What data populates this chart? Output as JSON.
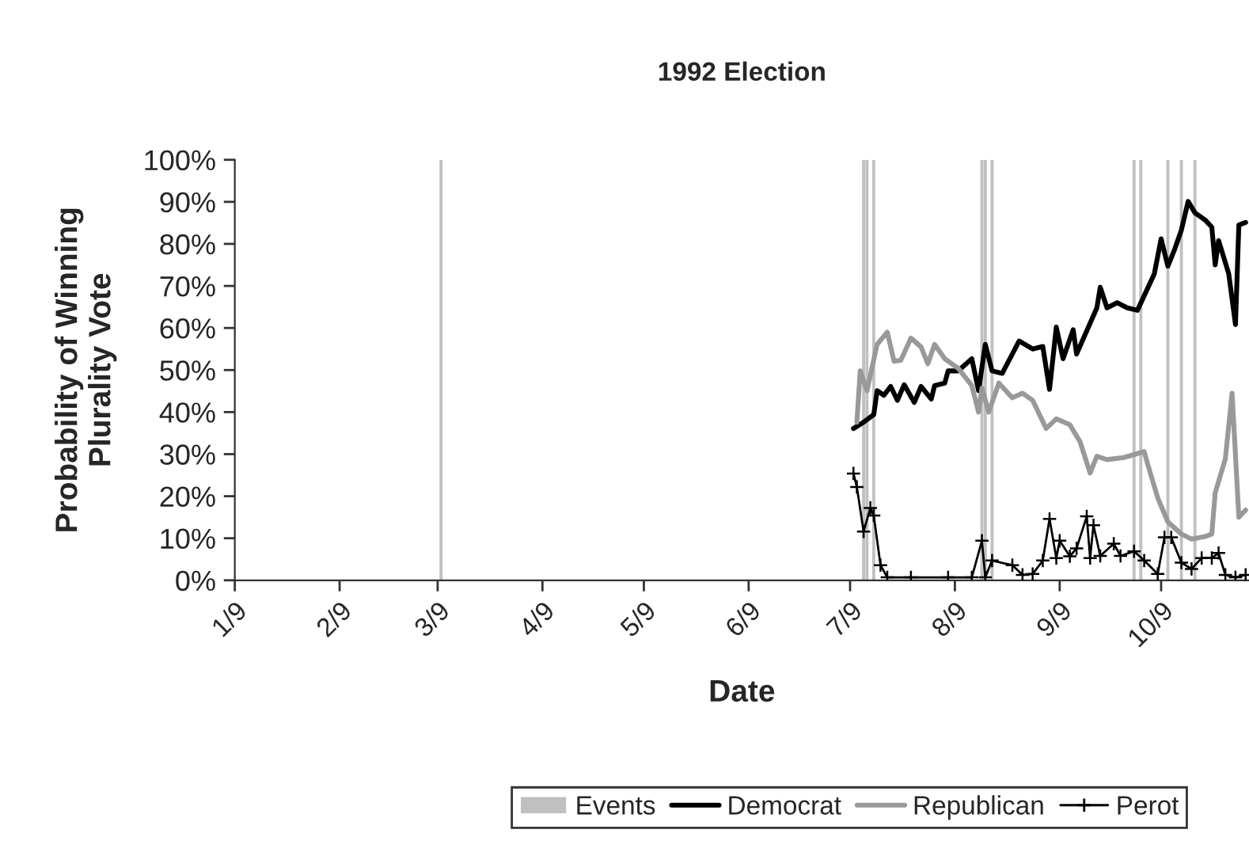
{
  "chart_data": {
    "type": "line",
    "title": "1992 Election",
    "xlabel": "Date",
    "ylabel": "Probability of Winning\nPlurality Vote",
    "xlim": [
      "1992-01-09",
      "1992-11-04"
    ],
    "xticks": [
      {
        "value": "1992-01-09",
        "label": "1/9"
      },
      {
        "value": "1992-02-09",
        "label": "2/9"
      },
      {
        "value": "1992-03-09",
        "label": "3/9"
      },
      {
        "value": "1992-04-09",
        "label": "4/9"
      },
      {
        "value": "1992-05-09",
        "label": "5/9"
      },
      {
        "value": "1992-06-09",
        "label": "6/9"
      },
      {
        "value": "1992-07-09",
        "label": "7/9"
      },
      {
        "value": "1992-08-09",
        "label": "8/9"
      },
      {
        "value": "1992-09-09",
        "label": "9/9"
      },
      {
        "value": "1992-10-09",
        "label": "10/9"
      }
    ],
    "ylim": [
      0,
      100
    ],
    "yticks": [
      {
        "value": 0,
        "label": "0%"
      },
      {
        "value": 10,
        "label": "10%"
      },
      {
        "value": 20,
        "label": "20%"
      },
      {
        "value": 30,
        "label": "30%"
      },
      {
        "value": 40,
        "label": "40%"
      },
      {
        "value": 50,
        "label": "50%"
      },
      {
        "value": 60,
        "label": "60%"
      },
      {
        "value": 70,
        "label": "70%"
      },
      {
        "value": 80,
        "label": "80%"
      },
      {
        "value": 90,
        "label": "90%"
      },
      {
        "value": 100,
        "label": "100%"
      }
    ],
    "grid": false,
    "legend": "bottom",
    "series": [
      {
        "name": "Events",
        "type": "bar",
        "color": "#c0c0c0",
        "x": [
          "1992-03-10",
          "1992-07-13",
          "1992-07-14",
          "1992-07-16",
          "1992-08-17",
          "1992-08-18",
          "1992-08-20",
          "1992-10-01",
          "1992-10-03",
          "1992-10-11",
          "1992-10-15",
          "1992-10-19"
        ],
        "values": [
          100,
          100,
          100,
          100,
          100,
          100,
          100,
          100,
          100,
          100,
          100,
          100
        ]
      },
      {
        "name": "Democrat",
        "color": "#000000",
        "marker": "none",
        "x": [
          "1992-07-10",
          "1992-07-13",
          "1992-07-16",
          "1992-07-17",
          "1992-07-19",
          "1992-07-21",
          "1992-07-23",
          "1992-07-25",
          "1992-07-28",
          "1992-07-30",
          "1992-08-02",
          "1992-08-03",
          "1992-08-06",
          "1992-08-07",
          "1992-08-10",
          "1992-08-14",
          "1992-08-16",
          "1992-08-18",
          "1992-08-20",
          "1992-08-23",
          "1992-08-28",
          "1992-09-01",
          "1992-09-04",
          "1992-09-06",
          "1992-09-08",
          "1992-09-10",
          "1992-09-13",
          "1992-09-14",
          "1992-09-20",
          "1992-09-21",
          "1992-09-23",
          "1992-09-26",
          "1992-09-29",
          "1992-10-02",
          "1992-10-07",
          "1992-10-09",
          "1992-10-11",
          "1992-10-13",
          "1992-10-15",
          "1992-10-17",
          "1992-10-19",
          "1992-10-22",
          "1992-10-24",
          "1992-10-25",
          "1992-10-26",
          "1992-10-29",
          "1992-10-31",
          "1992-11-01",
          "1992-11-03"
        ],
        "values": [
          36.1,
          37.6,
          39.4,
          45.1,
          44.0,
          46.1,
          42.8,
          46.5,
          42.3,
          46.1,
          43.1,
          46.3,
          46.9,
          49.8,
          49.8,
          52.7,
          45.1,
          56.1,
          49.8,
          49.2,
          56.9,
          55.0,
          55.6,
          45.4,
          60.2,
          52.7,
          59.6,
          53.8,
          64.8,
          69.7,
          64.8,
          66.0,
          64.8,
          64.2,
          72.9,
          81.2,
          74.7,
          78.7,
          83.3,
          90.1,
          87.4,
          85.7,
          84.0,
          75.0,
          80.8,
          72.9,
          60.8,
          84.5,
          85.1
        ]
      },
      {
        "name": "Republican",
        "color": "#999999",
        "marker": "none",
        "x": [
          "1992-07-11",
          "1992-07-12",
          "1992-07-14",
          "1992-07-17",
          "1992-07-20",
          "1992-07-22",
          "1992-07-24",
          "1992-07-27",
          "1992-07-30",
          "1992-08-01",
          "1992-08-03",
          "1992-08-06",
          "1992-08-10",
          "1992-08-14",
          "1992-08-16",
          "1992-08-17",
          "1992-08-19",
          "1992-08-22",
          "1992-08-26",
          "1992-08-29",
          "1992-09-01",
          "1992-09-05",
          "1992-09-08",
          "1992-09-12",
          "1992-09-15",
          "1992-09-18",
          "1992-09-20",
          "1992-09-23",
          "1992-09-28",
          "1992-10-04",
          "1992-10-05",
          "1992-10-08",
          "1992-10-11",
          "1992-10-15",
          "1992-10-18",
          "1992-10-22",
          "1992-10-24",
          "1992-10-25",
          "1992-10-28",
          "1992-10-30",
          "1992-11-01",
          "1992-11-03"
        ],
        "values": [
          37.6,
          49.8,
          45.1,
          56.1,
          59.0,
          52.1,
          52.3,
          57.6,
          55.5,
          51.5,
          56.1,
          52.7,
          50.4,
          46.3,
          40.0,
          45.7,
          40.0,
          46.9,
          43.4,
          44.5,
          42.8,
          36.1,
          38.4,
          37.0,
          33.0,
          25.5,
          29.5,
          28.7,
          29.2,
          30.6,
          27.7,
          19.6,
          13.9,
          11.0,
          9.8,
          10.4,
          11.0,
          20.8,
          28.9,
          44.5,
          15.0,
          16.7
        ]
      },
      {
        "name": "Perot",
        "color": "#000000",
        "marker": "cross",
        "x": [
          "1992-07-10",
          "1992-07-11",
          "1992-07-13",
          "1992-07-15",
          "1992-07-16",
          "1992-07-18",
          "1992-07-20",
          "1992-07-27",
          "1992-08-07",
          "1992-08-14",
          "1992-08-17",
          "1992-08-18",
          "1992-08-20",
          "1992-08-26",
          "1992-08-29",
          "1992-09-01",
          "1992-09-04",
          "1992-09-06",
          "1992-09-08",
          "1992-09-09",
          "1992-09-12",
          "1992-09-14",
          "1992-09-17",
          "1992-09-18",
          "1992-09-19",
          "1992-09-21",
          "1992-09-25",
          "1992-09-27",
          "1992-10-01",
          "1992-10-04",
          "1992-10-08",
          "1992-10-10",
          "1992-10-12",
          "1992-10-15",
          "1992-10-18",
          "1992-10-21",
          "1992-10-24",
          "1992-10-26",
          "1992-10-28",
          "1992-10-31",
          "1992-11-03"
        ],
        "values": [
          25.4,
          22.2,
          11.6,
          17.2,
          15.4,
          3.6,
          0.7,
          0.7,
          0.7,
          0.7,
          9.4,
          0.7,
          4.7,
          3.6,
          1.3,
          1.5,
          4.7,
          14.6,
          5.3,
          9.4,
          5.7,
          7.6,
          15.2,
          5.3,
          13.1,
          5.8,
          8.7,
          5.8,
          6.9,
          4.7,
          1.5,
          10.2,
          10.2,
          4.2,
          2.7,
          5.3,
          5.3,
          6.5,
          1.3,
          0.7,
          1.3
        ]
      }
    ]
  }
}
